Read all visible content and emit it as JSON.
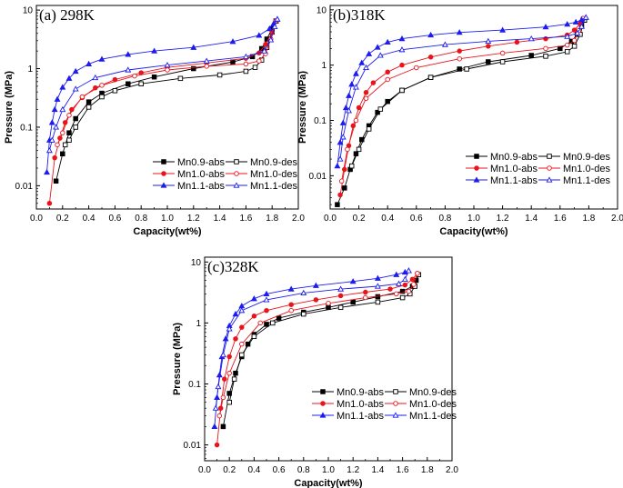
{
  "chart_data": [
    {
      "type": "line",
      "title": "(a) 298K",
      "xlabel": "Capacity(wt%)",
      "ylabel": "Pressure (MPa)",
      "yscale": "log",
      "xlim": [
        0.0,
        2.0
      ],
      "ylim": [
        0.004,
        12
      ],
      "xticks": [
        "0.0",
        "0.2",
        "0.4",
        "0.6",
        "0.8",
        "1.0",
        "1.2",
        "1.4",
        "1.6",
        "1.8",
        "2.0"
      ],
      "yticks": [
        "0.01",
        "0.1",
        "1",
        "10"
      ],
      "legend_position": "bottom-right",
      "series": [
        {
          "name": "Mn0.9-abs",
          "color": "#000000",
          "marker": "square-filled",
          "x": [
            0.15,
            0.2,
            0.25,
            0.3,
            0.4,
            0.5,
            0.7,
            0.9,
            1.2,
            1.5,
            1.65,
            1.72,
            1.76,
            1.8,
            1.83
          ],
          "y": [
            0.012,
            0.035,
            0.08,
            0.14,
            0.27,
            0.38,
            0.55,
            0.72,
            1.0,
            1.3,
            1.6,
            2.2,
            3.2,
            4.8,
            6.5
          ]
        },
        {
          "name": "Mn0.9-des",
          "color": "#000000",
          "marker": "square-open",
          "x": [
            1.83,
            1.8,
            1.76,
            1.72,
            1.67,
            1.6,
            1.4,
            1.1,
            0.8,
            0.6,
            0.5,
            0.4,
            0.3,
            0.25,
            0.22
          ],
          "y": [
            6.5,
            4.2,
            2.3,
            1.4,
            1.05,
            0.9,
            0.78,
            0.68,
            0.55,
            0.42,
            0.33,
            0.22,
            0.1,
            0.06,
            0.05
          ]
        },
        {
          "name": "Mn1.0-abs",
          "color": "#e8141c",
          "marker": "circle-filled",
          "x": [
            0.1,
            0.14,
            0.18,
            0.22,
            0.27,
            0.35,
            0.45,
            0.6,
            0.8,
            1.0,
            1.3,
            1.6,
            1.7,
            1.75,
            1.8,
            1.83
          ],
          "y": [
            0.005,
            0.03,
            0.065,
            0.12,
            0.2,
            0.32,
            0.47,
            0.65,
            0.85,
            1.05,
            1.25,
            1.5,
            1.85,
            2.6,
            4.2,
            6.5
          ]
        },
        {
          "name": "Mn1.0-des",
          "color": "#e8141c",
          "marker": "circle-open",
          "x": [
            1.83,
            1.79,
            1.75,
            1.7,
            1.6,
            1.3,
            1.0,
            0.75,
            0.5,
            0.35,
            0.25,
            0.2,
            0.16
          ],
          "y": [
            6.5,
            3.2,
            1.8,
            1.35,
            1.2,
            1.1,
            0.95,
            0.75,
            0.52,
            0.33,
            0.16,
            0.08,
            0.05
          ]
        },
        {
          "name": "Mn1.1-abs",
          "color": "#1c1cf0",
          "marker": "triangle-filled",
          "x": [
            0.08,
            0.1,
            0.12,
            0.14,
            0.16,
            0.2,
            0.25,
            0.3,
            0.4,
            0.5,
            0.7,
            0.9,
            1.2,
            1.5,
            1.7,
            1.78,
            1.81,
            1.84
          ],
          "y": [
            0.017,
            0.06,
            0.12,
            0.2,
            0.3,
            0.48,
            0.68,
            0.9,
            1.2,
            1.45,
            1.75,
            2.0,
            2.3,
            2.9,
            3.7,
            4.8,
            5.8,
            7.0
          ]
        },
        {
          "name": "Mn1.1-des",
          "color": "#1c1cf0",
          "marker": "triangle-open",
          "x": [
            1.84,
            1.82,
            1.79,
            1.74,
            1.6,
            1.3,
            1.0,
            0.7,
            0.45,
            0.3,
            0.2,
            0.15,
            0.12,
            0.1
          ],
          "y": [
            7.0,
            5.2,
            3.1,
            2.0,
            1.6,
            1.35,
            1.15,
            0.95,
            0.7,
            0.45,
            0.2,
            0.1,
            0.06,
            0.04
          ]
        }
      ]
    },
    {
      "type": "line",
      "title": "(b)318K",
      "xlabel": "Capacity(wt%)",
      "ylabel": "Pressure (MPa)",
      "yscale": "log",
      "xlim": [
        0.0,
        2.0
      ],
      "ylim": [
        0.0025,
        12
      ],
      "xticks": [
        "0.0",
        "0.2",
        "0.4",
        "0.6",
        "0.8",
        "1.0",
        "1.2",
        "1.4",
        "1.6",
        "1.8",
        "2.0"
      ],
      "yticks": [
        "0.01",
        "0.1",
        "1",
        "10"
      ],
      "legend_position": "bottom-right",
      "series": [
        {
          "name": "Mn0.9-abs",
          "color": "#000000",
          "marker": "square-filled",
          "x": [
            0.05,
            0.1,
            0.14,
            0.18,
            0.22,
            0.27,
            0.33,
            0.4,
            0.5,
            0.7,
            0.9,
            1.1,
            1.4,
            1.6,
            1.68,
            1.72,
            1.75,
            1.77
          ],
          "y": [
            0.003,
            0.006,
            0.013,
            0.025,
            0.045,
            0.08,
            0.14,
            0.22,
            0.35,
            0.6,
            0.85,
            1.15,
            1.5,
            2.0,
            2.7,
            3.6,
            5.2,
            6.5
          ]
        },
        {
          "name": "Mn0.9-des",
          "color": "#000000",
          "marker": "square-open",
          "x": [
            1.77,
            1.74,
            1.7,
            1.65,
            1.5,
            1.2,
            0.95,
            0.7,
            0.5,
            0.35,
            0.27,
            0.2,
            0.15
          ],
          "y": [
            6.5,
            3.6,
            2.2,
            1.75,
            1.45,
            1.15,
            0.85,
            0.6,
            0.35,
            0.16,
            0.07,
            0.03,
            0.015
          ]
        },
        {
          "name": "Mn1.0-abs",
          "color": "#e8141c",
          "marker": "circle-filled",
          "x": [
            0.07,
            0.1,
            0.13,
            0.16,
            0.2,
            0.25,
            0.3,
            0.4,
            0.5,
            0.7,
            0.9,
            1.1,
            1.3,
            1.5,
            1.65,
            1.7,
            1.74,
            1.76
          ],
          "y": [
            0.0045,
            0.013,
            0.035,
            0.08,
            0.17,
            0.32,
            0.48,
            0.75,
            1.0,
            1.4,
            1.8,
            2.2,
            2.6,
            3.0,
            3.5,
            4.3,
            5.6,
            7.0
          ]
        },
        {
          "name": "Mn1.0-des",
          "color": "#e8141c",
          "marker": "circle-open",
          "x": [
            1.76,
            1.73,
            1.7,
            1.65,
            1.5,
            1.2,
            0.9,
            0.6,
            0.4,
            0.25,
            0.18,
            0.12,
            0.08
          ],
          "y": [
            7.0,
            4.2,
            2.8,
            2.3,
            2.0,
            1.65,
            1.3,
            0.9,
            0.55,
            0.25,
            0.1,
            0.03,
            0.008
          ]
        },
        {
          "name": "Mn1.1-abs",
          "color": "#1c1cf0",
          "marker": "triangle-filled",
          "x": [
            0.05,
            0.07,
            0.09,
            0.11,
            0.13,
            0.15,
            0.18,
            0.22,
            0.27,
            0.33,
            0.4,
            0.5,
            0.7,
            0.9,
            1.2,
            1.5,
            1.65,
            1.71,
            1.75,
            1.78
          ],
          "y": [
            0.015,
            0.04,
            0.09,
            0.17,
            0.28,
            0.45,
            0.7,
            1.1,
            1.6,
            2.1,
            2.6,
            3.0,
            3.5,
            3.9,
            4.3,
            4.9,
            5.5,
            6.0,
            6.6,
            7.3
          ]
        },
        {
          "name": "Mn1.1-des",
          "color": "#1c1cf0",
          "marker": "triangle-open",
          "x": [
            1.78,
            1.75,
            1.72,
            1.65,
            1.4,
            1.1,
            0.8,
            0.5,
            0.35,
            0.25,
            0.18,
            0.13,
            0.09,
            0.07
          ],
          "y": [
            7.3,
            5.0,
            3.8,
            3.3,
            3.0,
            2.7,
            2.35,
            1.9,
            1.5,
            0.9,
            0.4,
            0.15,
            0.05,
            0.02
          ]
        }
      ]
    },
    {
      "type": "line",
      "title": "(c)328K",
      "xlabel": "Capacity(wt%)",
      "ylabel": "Pressure (MPa)",
      "yscale": "log",
      "xlim": [
        0.0,
        2.0
      ],
      "ylim": [
        0.0055,
        12
      ],
      "xticks": [
        "0.0",
        "0.2",
        "0.4",
        "0.6",
        "0.8",
        "1.0",
        "1.2",
        "1.4",
        "1.6",
        "1.8",
        "2.0"
      ],
      "yticks": [
        "0.01",
        "0.1",
        "1",
        "10"
      ],
      "legend_position": "bottom-right",
      "series": [
        {
          "name": "Mn0.9-abs",
          "color": "#000000",
          "marker": "square-filled",
          "x": [
            0.15,
            0.2,
            0.25,
            0.3,
            0.35,
            0.4,
            0.5,
            0.6,
            0.8,
            1.0,
            1.2,
            1.4,
            1.6,
            1.68,
            1.71,
            1.73
          ],
          "y": [
            0.02,
            0.07,
            0.15,
            0.28,
            0.45,
            0.65,
            0.95,
            1.2,
            1.5,
            1.8,
            2.2,
            2.7,
            3.3,
            4.0,
            5.0,
            6.2
          ]
        },
        {
          "name": "Mn0.9-des",
          "color": "#000000",
          "marker": "square-open",
          "x": [
            1.73,
            1.7,
            1.66,
            1.6,
            1.4,
            1.1,
            0.8,
            0.55,
            0.4,
            0.3,
            0.24,
            0.2
          ],
          "y": [
            6.2,
            4.0,
            3.0,
            2.6,
            2.2,
            1.8,
            1.4,
            1.0,
            0.6,
            0.3,
            0.12,
            0.05
          ]
        },
        {
          "name": "Mn1.0-abs",
          "color": "#e8141c",
          "marker": "circle-filled",
          "x": [
            0.1,
            0.13,
            0.16,
            0.2,
            0.25,
            0.3,
            0.4,
            0.5,
            0.7,
            0.9,
            1.1,
            1.3,
            1.5,
            1.62,
            1.68,
            1.72
          ],
          "y": [
            0.01,
            0.04,
            0.12,
            0.28,
            0.55,
            0.85,
            1.3,
            1.6,
            2.0,
            2.4,
            2.8,
            3.2,
            3.6,
            4.2,
            5.2,
            6.5
          ]
        },
        {
          "name": "Mn1.0-des",
          "color": "#e8141c",
          "marker": "circle-open",
          "x": [
            1.72,
            1.69,
            1.65,
            1.55,
            1.3,
            1.0,
            0.7,
            0.45,
            0.3,
            0.2,
            0.15,
            0.12
          ],
          "y": [
            6.5,
            4.3,
            3.3,
            3.0,
            2.6,
            2.1,
            1.6,
            1.0,
            0.45,
            0.15,
            0.06,
            0.03
          ]
        },
        {
          "name": "Mn1.1-abs",
          "color": "#1c1cf0",
          "marker": "triangle-filled",
          "x": [
            0.08,
            0.1,
            0.12,
            0.14,
            0.17,
            0.2,
            0.25,
            0.3,
            0.4,
            0.5,
            0.7,
            0.9,
            1.2,
            1.4,
            1.55,
            1.62,
            1.65
          ],
          "y": [
            0.02,
            0.06,
            0.14,
            0.28,
            0.55,
            0.9,
            1.4,
            1.9,
            2.5,
            3.0,
            3.6,
            4.1,
            4.8,
            5.4,
            6.2,
            6.8,
            7.2
          ]
        },
        {
          "name": "Mn1.1-des",
          "color": "#1c1cf0",
          "marker": "triangle-open",
          "x": [
            1.65,
            1.62,
            1.57,
            1.4,
            1.1,
            0.8,
            0.5,
            0.3,
            0.2,
            0.15,
            0.11,
            0.09
          ],
          "y": [
            7.2,
            5.2,
            4.4,
            4.0,
            3.6,
            3.1,
            2.4,
            1.6,
            0.8,
            0.3,
            0.09,
            0.04
          ]
        }
      ]
    }
  ]
}
